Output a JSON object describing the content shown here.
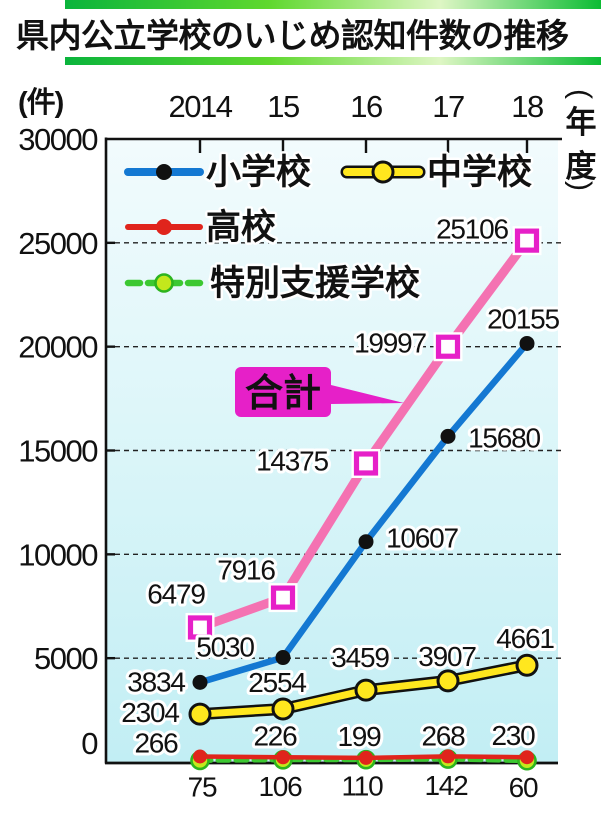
{
  "header": {
    "title": "県内公立学校のいじめ認知件数の推移"
  },
  "chart_data": {
    "type": "line",
    "title": "県内公立学校のいじめ認知件数の推移",
    "y_unit_label": "(件)",
    "x_unit_label": "(年度)",
    "categories": [
      "2014",
      "15",
      "16",
      "17",
      "18"
    ],
    "yticks": [
      0,
      5000,
      10000,
      15000,
      20000,
      25000,
      30000
    ],
    "ylim": [
      0,
      30000
    ],
    "grid": "horizontal-dashed",
    "legend_position": "top-left-inside",
    "legend_order": [
      "小学校",
      "中学校",
      "高校",
      "特別支援学校"
    ],
    "annotation": {
      "label": "合計",
      "color": "#e620c8",
      "text_color": "#ffffff"
    },
    "series": [
      {
        "name": "合計",
        "values": [
          6479,
          7916,
          14375,
          19997,
          25106
        ],
        "color": "#f472b2",
        "marker": "open-square",
        "marker_color": "#e620c8",
        "line_style": "solid"
      },
      {
        "name": "小学校",
        "values": [
          3834,
          5030,
          10607,
          15680,
          20155
        ],
        "color": "#1478d2",
        "marker": "dot",
        "marker_color": "#111111",
        "line_style": "solid"
      },
      {
        "name": "中学校",
        "values": [
          2304,
          2554,
          3459,
          3907,
          4661
        ],
        "color": "#ffe71e",
        "marker": "outlined-circle",
        "marker_color": "#ffe71e",
        "line_style": "solid-black-outline"
      },
      {
        "name": "高校",
        "values": [
          266,
          226,
          199,
          268,
          230
        ],
        "color": "#e0241c",
        "marker": "dot",
        "marker_color": "#e0241c",
        "line_style": "solid"
      },
      {
        "name": "特別支援学校",
        "values": [
          75,
          106,
          110,
          142,
          60
        ],
        "color": "#3cc832",
        "marker": "outlined-circle",
        "marker_color": "#c3e81c",
        "line_style": "dashed"
      }
    ],
    "plot_bg_top": "#f2fbfd",
    "plot_bg_bottom": "#c2eef4"
  }
}
